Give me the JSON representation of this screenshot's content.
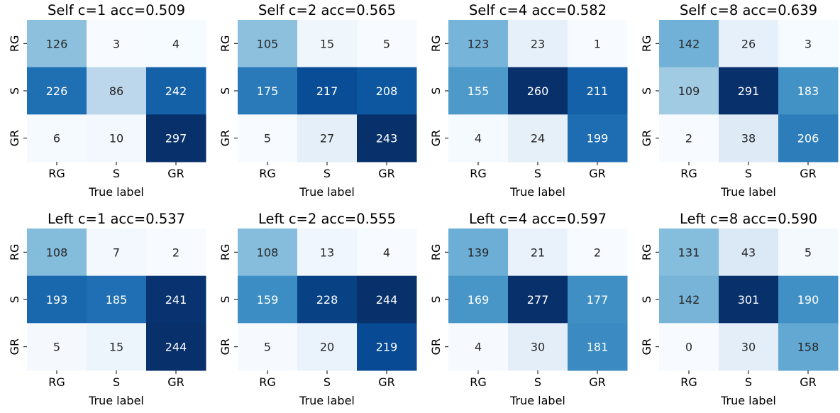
{
  "chart_data": [
    {
      "type": "heatmap",
      "title": "Self c=1 acc=0.509",
      "xlabel": "True label",
      "ylabel": "",
      "x_categories": [
        "RG",
        "S",
        "GR"
      ],
      "y_categories": [
        "RG",
        "S",
        "GR"
      ],
      "values": [
        [
          126,
          3,
          4
        ],
        [
          226,
          86,
          242
        ],
        [
          6,
          10,
          297
        ]
      ],
      "colormap": "Blues"
    },
    {
      "type": "heatmap",
      "title": "Self c=2 acc=0.565",
      "xlabel": "True label",
      "ylabel": "",
      "x_categories": [
        "RG",
        "S",
        "GR"
      ],
      "y_categories": [
        "RG",
        "S",
        "GR"
      ],
      "values": [
        [
          105,
          15,
          5
        ],
        [
          175,
          217,
          208
        ],
        [
          5,
          27,
          243
        ]
      ],
      "colormap": "Blues"
    },
    {
      "type": "heatmap",
      "title": "Self c=4 acc=0.582",
      "xlabel": "True label",
      "ylabel": "",
      "x_categories": [
        "RG",
        "S",
        "GR"
      ],
      "y_categories": [
        "RG",
        "S",
        "GR"
      ],
      "values": [
        [
          123,
          23,
          1
        ],
        [
          155,
          260,
          211
        ],
        [
          4,
          24,
          199
        ]
      ],
      "colormap": "Blues"
    },
    {
      "type": "heatmap",
      "title": "Self c=8 acc=0.639",
      "xlabel": "True label",
      "ylabel": "",
      "x_categories": [
        "RG",
        "S",
        "GR"
      ],
      "y_categories": [
        "RG",
        "S",
        "GR"
      ],
      "values": [
        [
          142,
          26,
          3
        ],
        [
          109,
          291,
          183
        ],
        [
          2,
          38,
          206
        ]
      ],
      "colormap": "Blues"
    },
    {
      "type": "heatmap",
      "title": "Left c=1 acc=0.537",
      "xlabel": "True label",
      "ylabel": "",
      "x_categories": [
        "RG",
        "S",
        "GR"
      ],
      "y_categories": [
        "RG",
        "S",
        "GR"
      ],
      "values": [
        [
          108,
          7,
          2
        ],
        [
          193,
          185,
          241
        ],
        [
          5,
          15,
          244
        ]
      ],
      "colormap": "Blues"
    },
    {
      "type": "heatmap",
      "title": "Left c=2 acc=0.555",
      "xlabel": "True label",
      "ylabel": "",
      "x_categories": [
        "RG",
        "S",
        "GR"
      ],
      "y_categories": [
        "RG",
        "S",
        "GR"
      ],
      "values": [
        [
          108,
          13,
          4
        ],
        [
          159,
          228,
          244
        ],
        [
          5,
          20,
          219
        ]
      ],
      "colormap": "Blues"
    },
    {
      "type": "heatmap",
      "title": "Left c=4 acc=0.597",
      "xlabel": "True label",
      "ylabel": "",
      "x_categories": [
        "RG",
        "S",
        "GR"
      ],
      "y_categories": [
        "RG",
        "S",
        "GR"
      ],
      "values": [
        [
          139,
          21,
          2
        ],
        [
          169,
          277,
          177
        ],
        [
          4,
          30,
          181
        ]
      ],
      "colormap": "Blues"
    },
    {
      "type": "heatmap",
      "title": "Left c=8 acc=0.590",
      "xlabel": "True label",
      "ylabel": "",
      "x_categories": [
        "RG",
        "S",
        "GR"
      ],
      "y_categories": [
        "RG",
        "S",
        "GR"
      ],
      "values": [
        [
          131,
          43,
          5
        ],
        [
          142,
          301,
          190
        ],
        [
          0,
          30,
          158
        ]
      ],
      "colormap": "Blues"
    }
  ]
}
